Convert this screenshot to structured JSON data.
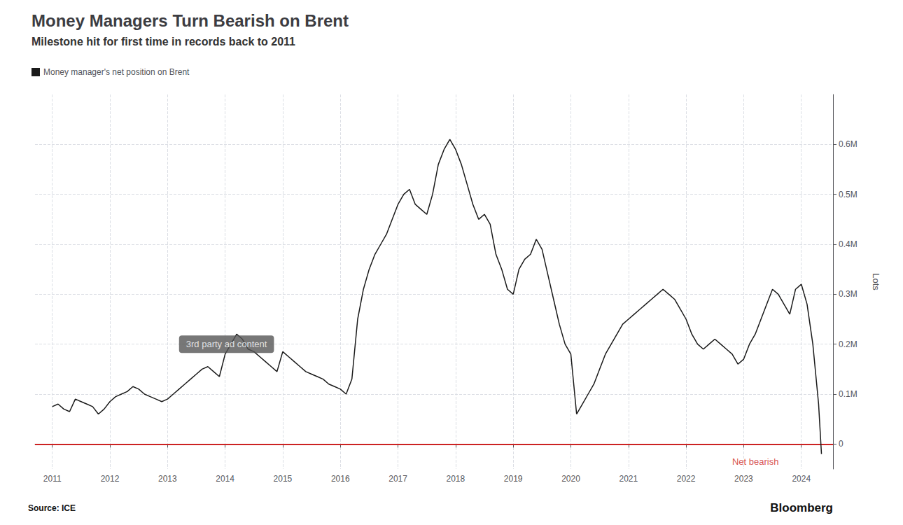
{
  "chart_data": {
    "type": "line",
    "title": "Money Managers Turn Bearish on Brent",
    "subtitle": "Milestone hit for first time in records back to 2011",
    "ylabel": "Lots",
    "source": "Source: ICE",
    "credit": "Bloomberg",
    "legend": "upper left",
    "grid": true,
    "x": [
      2011.0,
      2011.1,
      2011.2,
      2011.3,
      2011.4,
      2011.5,
      2011.6,
      2011.7,
      2011.8,
      2011.9,
      2012.0,
      2012.1,
      2012.2,
      2012.3,
      2012.4,
      2012.5,
      2012.6,
      2012.7,
      2012.8,
      2012.9,
      2013.0,
      2013.1,
      2013.2,
      2013.3,
      2013.4,
      2013.5,
      2013.6,
      2013.7,
      2013.8,
      2013.9,
      2014.0,
      2014.1,
      2014.2,
      2014.3,
      2014.4,
      2014.5,
      2014.6,
      2014.7,
      2014.8,
      2014.9,
      2015.0,
      2015.1,
      2015.2,
      2015.3,
      2015.4,
      2015.5,
      2015.6,
      2015.7,
      2015.8,
      2015.9,
      2016.0,
      2016.1,
      2016.2,
      2016.3,
      2016.4,
      2016.5,
      2016.6,
      2016.7,
      2016.8,
      2016.9,
      2017.0,
      2017.1,
      2017.2,
      2017.3,
      2017.4,
      2017.5,
      2017.6,
      2017.7,
      2017.8,
      2017.9,
      2018.0,
      2018.1,
      2018.2,
      2018.3,
      2018.4,
      2018.5,
      2018.6,
      2018.7,
      2018.8,
      2018.9,
      2019.0,
      2019.1,
      2019.2,
      2019.3,
      2019.4,
      2019.5,
      2019.6,
      2019.7,
      2019.8,
      2019.9,
      2020.0,
      2020.1,
      2020.2,
      2020.3,
      2020.4,
      2020.5,
      2020.6,
      2020.7,
      2020.8,
      2020.9,
      2021.0,
      2021.1,
      2021.2,
      2021.3,
      2021.4,
      2021.5,
      2021.6,
      2021.7,
      2021.8,
      2021.9,
      2022.0,
      2022.1,
      2022.2,
      2022.3,
      2022.4,
      2022.5,
      2022.6,
      2022.7,
      2022.8,
      2022.9,
      2023.0,
      2023.1,
      2023.2,
      2023.3,
      2023.4,
      2023.5,
      2023.6,
      2023.7,
      2023.8,
      2023.9,
      2024.0,
      2024.1,
      2024.2,
      2024.3,
      2024.35
    ],
    "series": [
      {
        "name": "Money manager's net position on Brent",
        "color": "#1a1a1a",
        "values": [
          75000,
          80000,
          70000,
          65000,
          90000,
          85000,
          80000,
          75000,
          60000,
          70000,
          85000,
          95000,
          100000,
          105000,
          115000,
          110000,
          100000,
          95000,
          90000,
          85000,
          90000,
          100000,
          110000,
          120000,
          130000,
          140000,
          150000,
          155000,
          145000,
          135000,
          180000,
          200000,
          220000,
          210000,
          190000,
          185000,
          175000,
          165000,
          155000,
          145000,
          185000,
          175000,
          165000,
          155000,
          145000,
          140000,
          135000,
          130000,
          120000,
          115000,
          110000,
          100000,
          130000,
          250000,
          310000,
          350000,
          380000,
          400000,
          420000,
          450000,
          480000,
          500000,
          510000,
          480000,
          470000,
          460000,
          500000,
          560000,
          590000,
          610000,
          590000,
          560000,
          520000,
          480000,
          450000,
          460000,
          440000,
          380000,
          350000,
          310000,
          300000,
          350000,
          370000,
          380000,
          410000,
          390000,
          340000,
          290000,
          240000,
          200000,
          180000,
          60000,
          80000,
          100000,
          120000,
          150000,
          180000,
          200000,
          220000,
          240000,
          250000,
          260000,
          270000,
          280000,
          290000,
          300000,
          310000,
          300000,
          290000,
          270000,
          250000,
          220000,
          200000,
          190000,
          200000,
          210000,
          200000,
          190000,
          180000,
          160000,
          170000,
          200000,
          220000,
          250000,
          280000,
          310000,
          300000,
          280000,
          260000,
          310000,
          320000,
          280000,
          200000,
          80000,
          -20000
        ]
      }
    ],
    "reference_lines": [
      {
        "y": 0,
        "color": "#cc2222"
      }
    ],
    "annotations": [
      {
        "text": "3rd party ad content",
        "x": 2013.2,
        "y": 200000,
        "color": "#ffffff",
        "background": "#555555"
      },
      {
        "text": "Net bearish",
        "x": 2022.8,
        "y": -35000,
        "color": "#cc2222"
      }
    ],
    "xlim": [
      2010.7,
      2024.55
    ],
    "xticks": [
      2011,
      2012,
      2013,
      2014,
      2015,
      2016,
      2017,
      2018,
      2019,
      2020,
      2021,
      2022,
      2023,
      2024
    ],
    "ylim": [
      -50000,
      700000
    ],
    "yticks": [
      0,
      {
        "value": 100000,
        "label": "0.1M"
      },
      {
        "value": 200000,
        "label": "0.2M"
      },
      {
        "value": 300000,
        "label": "0.3M"
      },
      {
        "value": 400000,
        "label": "0.4M"
      },
      {
        "value": 500000,
        "label": "0.5M"
      },
      {
        "value": 600000,
        "label": "0.6M"
      }
    ]
  }
}
